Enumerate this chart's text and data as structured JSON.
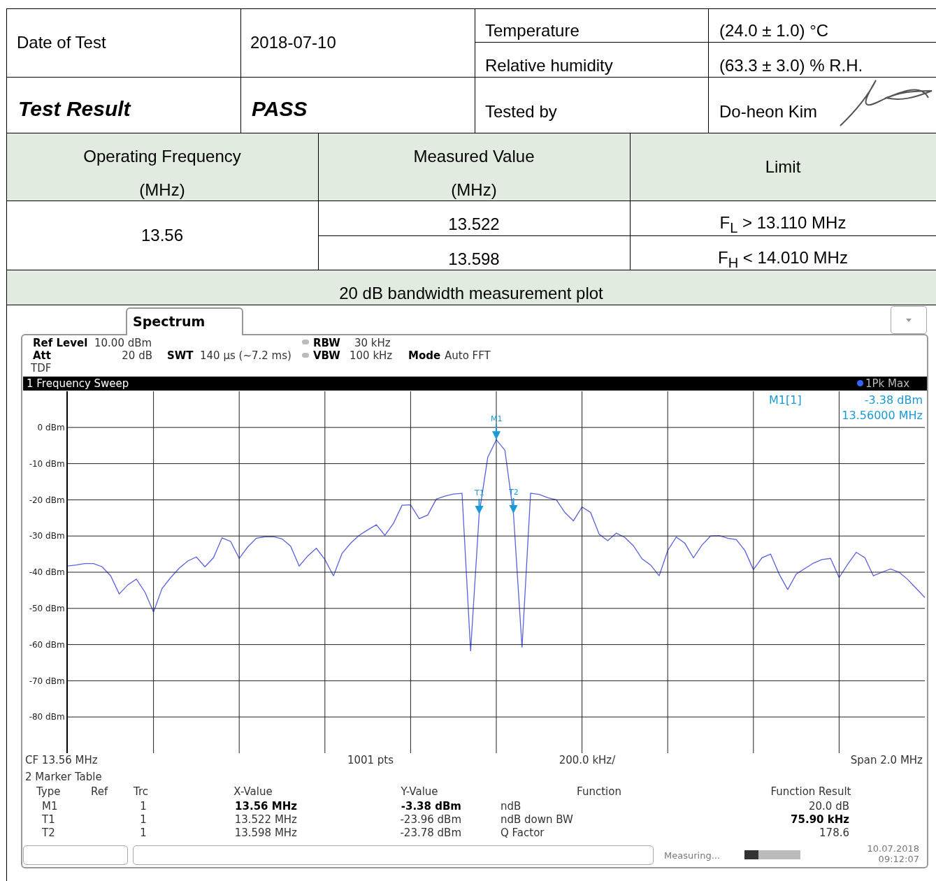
{
  "chart_data": {
    "type": "line",
    "title": "20 dB bandwidth measurement plot",
    "categories": [
      null,
      null,
      null,
      null,
      null,
      null,
      null,
      null,
      null,
      null,
      null,
      null,
      null,
      null,
      null,
      null,
      null,
      null,
      null,
      null,
      null,
      null,
      null,
      null,
      null,
      null,
      null,
      null,
      null,
      null,
      null,
      null,
      null,
      null,
      null,
      null,
      null,
      null,
      null,
      null,
      null,
      null,
      null,
      null,
      null,
      null,
      null,
      null,
      null,
      null,
      null,
      null,
      null,
      null,
      null,
      null,
      null,
      null,
      null,
      null,
      null,
      null,
      null,
      null,
      null,
      null,
      null,
      null,
      null,
      null,
      null,
      null,
      null,
      null,
      null,
      null,
      null,
      null,
      null,
      null,
      null,
      null,
      null,
      null,
      null,
      null,
      null,
      null,
      null,
      null,
      null,
      null,
      null,
      null,
      null,
      null,
      null,
      null,
      null,
      null,
      null
    ],
    "series": [
      {
        "color": "#5a62e0",
        "values": [
          -38.3,
          -38.0,
          -37.6,
          -37.6,
          -38.5,
          -41.0,
          -46.0,
          -43.5,
          -41.9,
          -45.5,
          -51.0,
          -44.5,
          -41.5,
          -38.9,
          -36.9,
          -35.8,
          -38.5,
          -36.0,
          -30.5,
          -31.5,
          -36.2,
          -33.0,
          -30.6,
          -30.2,
          -30.2,
          -30.8,
          -32.8,
          -38.3,
          -35.5,
          -33.4,
          -36.5,
          -41.0,
          -34.8,
          -32.0,
          -29.8,
          -28.3,
          -26.9,
          -29.8,
          -26.5,
          -21.5,
          -21.4,
          -25.2,
          -24.2,
          -19.8,
          -19.0,
          -18.4,
          -18.2,
          -61.8,
          -24.0,
          -8.3,
          -3.4,
          -6.3,
          -23.8,
          -60.8,
          -18.2,
          -18.5,
          -19.4,
          -20.0,
          -23.5,
          -25.8,
          -22.0,
          -23.5,
          -29.5,
          -31.3,
          -29.2,
          -30.4,
          -32.7,
          -36.3,
          -38.0,
          -41.0,
          -34.0,
          -30.3,
          -32.0,
          -36.0,
          -32.5,
          -30.0,
          -29.9,
          -30.6,
          -31.0,
          -34.0,
          -39.3,
          -36.0,
          -35.0,
          -40.5,
          -44.8,
          -40.5,
          -39.0,
          -37.5,
          -36.5,
          -36.2,
          -41.5,
          -37.8,
          -34.5,
          -36.0,
          -41.0,
          -40.0,
          -39.1,
          -40.0,
          -42.0,
          -44.5,
          -47.0
        ]
      }
    ],
    "ylim": [
      -90,
      10
    ],
    "yticks": [
      {
        "value": -80,
        "label": "-80 dBm"
      },
      {
        "value": -70,
        "label": "-70 dBm"
      },
      {
        "value": -60,
        "label": "-60 dBm"
      },
      {
        "value": -50,
        "label": "-50 dBm"
      },
      {
        "value": -40,
        "label": "-40 dBm"
      },
      {
        "value": -30,
        "label": "-30 dBm"
      },
      {
        "value": -20,
        "label": "-20 dBm"
      },
      {
        "value": -10,
        "label": "-10 dBm"
      },
      {
        "value": 0,
        "label": "0 dBm"
      }
    ],
    "grid": true,
    "tick_labels": "y",
    "annotations": [
      "Date of Test",
      "2018-07-10",
      "Temperature",
      "(24.0 ± 1.0) °C",
      "Relative humidity",
      "(63.3 ± 3.0) % R.H.",
      "Test Result",
      "PASS",
      "Tested by",
      "Do-heon Kim",
      "Operating Frequency",
      "(MHz)",
      "Measured Value",
      "(MHz)",
      "Limit",
      "13.56",
      "13.522",
      "13.598",
      "F$_{L}$ > 13.110 MHz",
      "F$_{H}$ < 14.010 MHz",
      "Spectrum",
      "Ref Level",
      "10.00 dBm",
      "Att",
      "20 dB",
      "TDF",
      "SWT",
      "140 µs (~7.2 ms)",
      "RBW",
      "30 kHz",
      "VBW",
      "100 kHz",
      "Mode",
      "Auto FFT",
      "1 Frequency Sweep",
      "1Pk Max",
      "M1[1]",
      "-3.38 dBm",
      "13.56000 MHz",
      "CF 13.56 MHz",
      "1001 pts",
      "200.0 kHz/",
      "Span 2.0 MHz",
      "2 Marker Table",
      "Type",
      "Ref",
      "Trc",
      "X-Value",
      "Y-Value",
      "Function",
      "Function Result",
      "M1",
      "1",
      "13.56 MHz",
      "-3.38 dBm",
      "ndB",
      "20.0 dB",
      "T1",
      "1",
      "13.522 MHz",
      "-23.96 dBm",
      "ndB down BW",
      "75.90 kHz",
      "T2",
      "1",
      "13.598 MHz",
      "-23.78 dBm",
      "Q Factor",
      "178.6",
      "Measuring...",
      "10.07.2018",
      "09:12:07",
      {
        "text": "M1",
        "y": -3.38
      },
      {
        "text": "T1",
        "y": -23.96
      },
      {
        "text": "T2",
        "y": -23.78
      }
    ]
  }
}
